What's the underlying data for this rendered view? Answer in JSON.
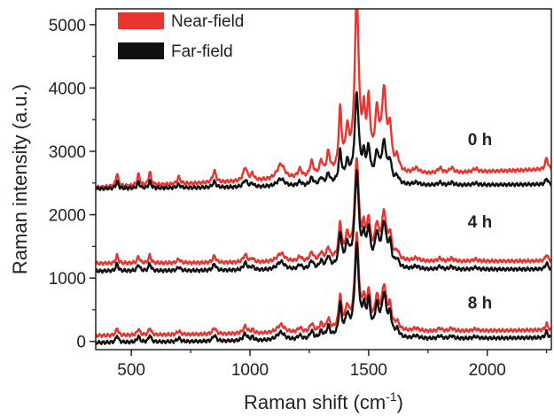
{
  "chart_data": {
    "type": "line",
    "title": "",
    "xlabel": "Raman shift (cm",
    "xlabel_sup": "-1",
    "xlabel_suffix": ")",
    "ylabel": "Raman intensity (a.u.)",
    "xlim": [
      350,
      2270
    ],
    "ylim": [
      -130,
      5250
    ],
    "xticks": [
      500,
      1000,
      1500,
      2000
    ],
    "yticks": [
      0,
      1000,
      2000,
      3000,
      4000,
      5000
    ],
    "legend": {
      "placement": "top-left",
      "entries": [
        {
          "label": "Near-field",
          "color": "#e8352f"
        },
        {
          "label": "Far-field",
          "color": "#111111"
        }
      ]
    },
    "annotations": [
      {
        "text": "0 h",
        "x": 2000,
        "y": 3100
      },
      {
        "text": "4 h",
        "x": 2000,
        "y": 1800
      },
      {
        "text": "8 h",
        "x": 2000,
        "y": 520
      }
    ],
    "peaks": [
      {
        "x": 440,
        "h": 0.08,
        "w": 6
      },
      {
        "x": 530,
        "h": 0.07,
        "w": 6
      },
      {
        "x": 578,
        "h": 0.08,
        "w": 6
      },
      {
        "x": 700,
        "h": 0.04,
        "w": 8
      },
      {
        "x": 850,
        "h": 0.07,
        "w": 8
      },
      {
        "x": 980,
        "h": 0.08,
        "w": 10
      },
      {
        "x": 1010,
        "h": 0.04,
        "w": 7
      },
      {
        "x": 1130,
        "h": 0.09,
        "w": 20
      },
      {
        "x": 1210,
        "h": 0.05,
        "w": 10
      },
      {
        "x": 1260,
        "h": 0.09,
        "w": 9
      },
      {
        "x": 1300,
        "h": 0.08,
        "w": 8
      },
      {
        "x": 1330,
        "h": 0.12,
        "w": 8
      },
      {
        "x": 1380,
        "h": 0.35,
        "w": 7
      },
      {
        "x": 1410,
        "h": 0.2,
        "w": 9
      },
      {
        "x": 1450,
        "h": 1.0,
        "w": 10
      },
      {
        "x": 1480,
        "h": 0.25,
        "w": 7
      },
      {
        "x": 1500,
        "h": 0.35,
        "w": 8
      },
      {
        "x": 1535,
        "h": 0.3,
        "w": 10
      },
      {
        "x": 1565,
        "h": 0.45,
        "w": 12
      },
      {
        "x": 1590,
        "h": 0.22,
        "w": 8
      },
      {
        "x": 1620,
        "h": 0.08,
        "w": 10
      },
      {
        "x": 1700,
        "h": 0.03,
        "w": 15
      },
      {
        "x": 1800,
        "h": 0.03,
        "w": 10
      },
      {
        "x": 1850,
        "h": 0.03,
        "w": 10
      },
      {
        "x": 1950,
        "h": 0.02,
        "w": 12
      },
      {
        "x": 2250,
        "h": 0.07,
        "w": 6
      }
    ],
    "series": [
      {
        "name": "Near-field",
        "group": "0 h",
        "color": "#e8352f",
        "baseline": 2430,
        "scale": 2650,
        "end": 2720
      },
      {
        "name": "Far-field",
        "group": "0 h",
        "color": "#111111",
        "baseline": 2410,
        "scale": 1350,
        "end": 2480
      },
      {
        "name": "Near-field",
        "group": "4 h",
        "color": "#e8352f",
        "baseline": 1230,
        "scale": 1520,
        "end": 1270
      },
      {
        "name": "Far-field",
        "group": "4 h",
        "color": "#111111",
        "baseline": 1110,
        "scale": 1450,
        "end": 1140
      },
      {
        "name": "Near-field",
        "group": "8 h",
        "color": "#e8352f",
        "baseline": 90,
        "scale": 1430,
        "end": 180
      },
      {
        "name": "Far-field",
        "group": "8 h",
        "color": "#111111",
        "baseline": -20,
        "scale": 1390,
        "end": 60
      }
    ]
  }
}
